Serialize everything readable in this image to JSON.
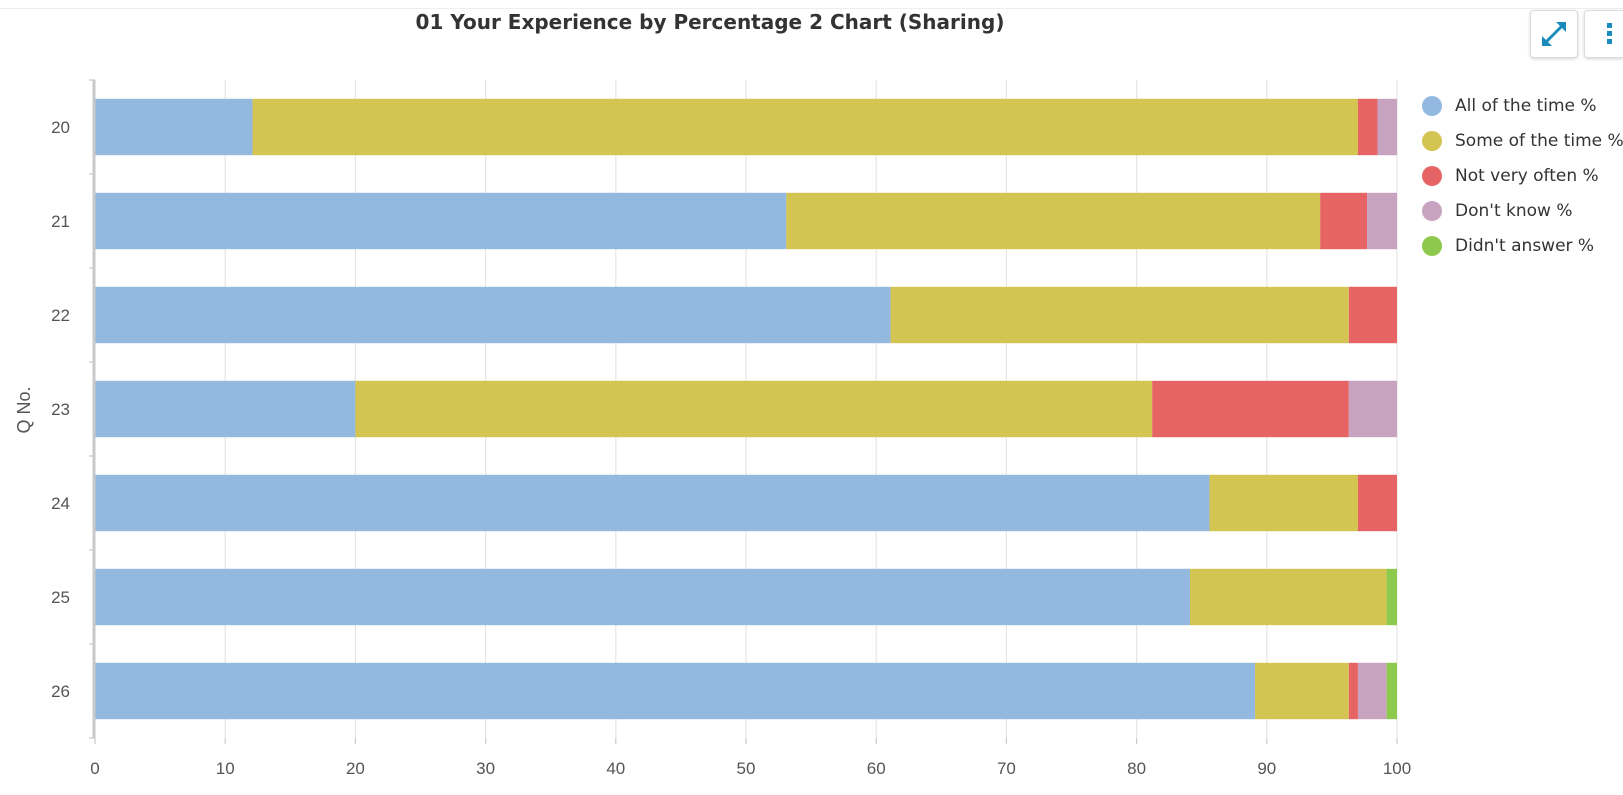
{
  "chart_data": {
    "type": "bar",
    "orientation": "horizontal",
    "stacked": true,
    "title": "01 Your Experience by Percentage 2 Chart (Sharing)",
    "xlabel": "",
    "ylabel": "Q No.",
    "xlim": [
      0,
      100
    ],
    "x_ticks": [
      "0",
      "10",
      "20",
      "30",
      "40",
      "50",
      "60",
      "70",
      "80",
      "90",
      "100"
    ],
    "categories": [
      "20",
      "21",
      "22",
      "23",
      "24",
      "25",
      "26"
    ],
    "series": [
      {
        "name": "All of the time %",
        "color": "#94b9e0",
        "values": [
          12.1,
          53.1,
          61.1,
          20.0,
          85.6,
          84.1,
          89.1
        ]
      },
      {
        "name": "Some of the time %",
        "color": "#d4c451",
        "values": [
          84.9,
          41.0,
          35.2,
          61.2,
          11.4,
          15.1,
          7.2
        ]
      },
      {
        "name": "Not very often %",
        "color": "#e66464",
        "values": [
          1.5,
          3.6,
          3.7,
          15.1,
          3.0,
          0.0,
          0.7
        ]
      },
      {
        "name": "Don't know %",
        "color": "#c8a3c0",
        "values": [
          1.5,
          2.3,
          0.0,
          3.7,
          0.0,
          0.0,
          2.2
        ]
      },
      {
        "name": "Didn't answer %",
        "color": "#8dc94c",
        "values": [
          0.0,
          0.0,
          0.0,
          0.0,
          0.0,
          0.8,
          0.8
        ]
      }
    ],
    "grid": true,
    "legend_position": "top-right"
  },
  "toolbar": {
    "expand_icon": "expand-arrows-icon",
    "menu_icon": "vertical-ellipsis-icon",
    "accent": "#1a8bbd"
  }
}
